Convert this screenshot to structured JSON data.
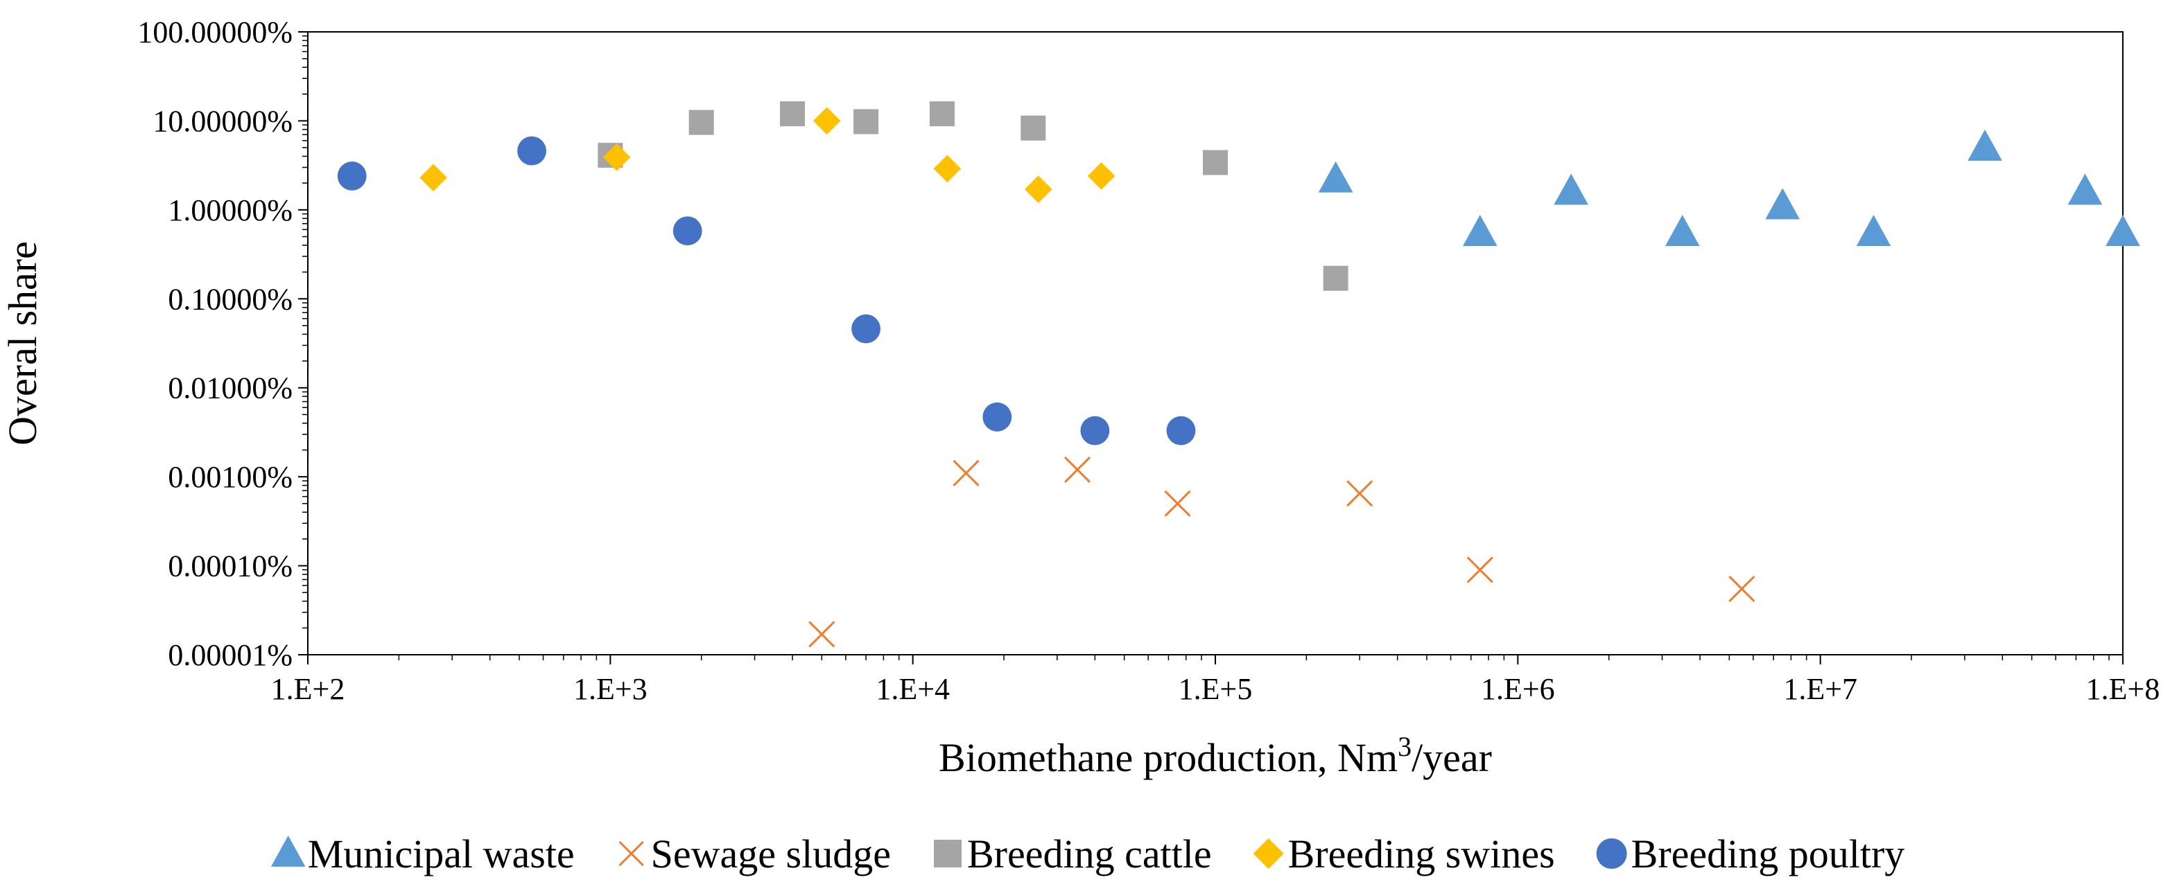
{
  "chart_data": {
    "type": "scatter",
    "title": "",
    "xlabel": "Biomethane production, Nm3/year",
    "xlabel_parts": {
      "main": "Biomethane production, Nm",
      "sup": "3",
      "tail": "/year"
    },
    "ylabel": "Overal share",
    "x_scale": "log",
    "y_scale": "log",
    "xlim": [
      100,
      100000000
    ],
    "ylim": [
      1e-07,
      1
    ],
    "x_ticks": [
      {
        "value": 100,
        "label": "1.E+2"
      },
      {
        "value": 1000,
        "label": "1.E+3"
      },
      {
        "value": 10000,
        "label": "1.E+4"
      },
      {
        "value": 100000,
        "label": "1.E+5"
      },
      {
        "value": 1000000,
        "label": "1.E+6"
      },
      {
        "value": 10000000,
        "label": "1.E+7"
      },
      {
        "value": 100000000,
        "label": "1.E+8"
      }
    ],
    "y_ticks": [
      {
        "value": 1e-07,
        "label": "0.00001%"
      },
      {
        "value": 1e-06,
        "label": "0.00010%"
      },
      {
        "value": 1e-05,
        "label": "0.00100%"
      },
      {
        "value": 0.0001,
        "label": "0.01000%"
      },
      {
        "value": 0.001,
        "label": "0.10000%"
      },
      {
        "value": 0.01,
        "label": "1.00000%"
      },
      {
        "value": 0.1,
        "label": "10.00000%"
      },
      {
        "value": 1,
        "label": "100.00000%"
      }
    ],
    "grid": false,
    "legend_position": "bottom",
    "series": [
      {
        "name": "Municipal waste",
        "marker": "triangle",
        "color": "#5B9BD5",
        "points": [
          [
            250000,
            0.022
          ],
          [
            750000,
            0.0055
          ],
          [
            1500000,
            0.016
          ],
          [
            3500000,
            0.0055
          ],
          [
            7500000,
            0.011
          ],
          [
            15000000,
            0.0055
          ],
          [
            35000000,
            0.05
          ],
          [
            75000000,
            0.016
          ],
          [
            100000000,
            0.0055
          ]
        ]
      },
      {
        "name": "Sewage sludge",
        "marker": "x",
        "color": "#ED7D31",
        "points": [
          [
            5000,
            1.7e-07
          ],
          [
            15000,
            1.1e-05
          ],
          [
            35000,
            1.2e-05
          ],
          [
            75000,
            5e-06
          ],
          [
            300000,
            6.5e-06
          ],
          [
            750000,
            9e-07
          ],
          [
            5500000,
            5.5e-07
          ]
        ]
      },
      {
        "name": "Breeding cattle",
        "marker": "square",
        "color": "#A5A5A5",
        "points": [
          [
            1000,
            0.041
          ],
          [
            2000,
            0.096
          ],
          [
            4000,
            0.12
          ],
          [
            7000,
            0.098
          ],
          [
            12500,
            0.12
          ],
          [
            25000,
            0.083
          ],
          [
            100000,
            0.034
          ],
          [
            250000,
            0.0017
          ]
        ]
      },
      {
        "name": "Breeding swines",
        "marker": "diamond",
        "color": "#FFC000",
        "points": [
          [
            260,
            0.023
          ],
          [
            1050,
            0.039
          ],
          [
            5200,
            0.1
          ],
          [
            13000,
            0.029
          ],
          [
            26000,
            0.017
          ],
          [
            42000,
            0.024
          ]
        ]
      },
      {
        "name": "Breeding poultry",
        "marker": "circle",
        "color": "#4472C4",
        "points": [
          [
            140,
            0.024
          ],
          [
            550,
            0.046
          ],
          [
            1800,
            0.0058
          ],
          [
            7000,
            0.00046
          ],
          [
            19000,
            4.7e-05
          ],
          [
            40000,
            3.3e-05
          ],
          [
            77000,
            3.3e-05
          ]
        ]
      }
    ]
  }
}
